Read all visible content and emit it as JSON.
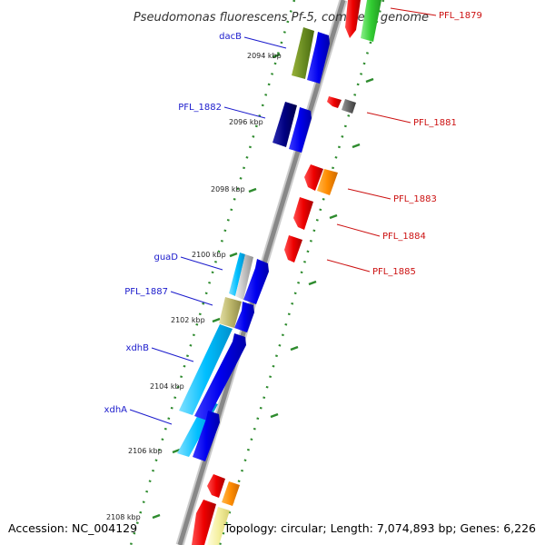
{
  "title": "Pseudomonas fluorescens Pf-5, complete genome",
  "footer": {
    "accession": "Accession: NC_004129",
    "summary": "Topology: circular; Length: 7,074,893 bp; Genes: 6,226"
  },
  "ticks": [
    "2094 kbp",
    "2096 kbp",
    "2098 kbp",
    "2100 kbp",
    "2102 kbp",
    "2104 kbp",
    "2106 kbp",
    "2108 kbp"
  ],
  "forward_gene_labels": [
    "dacB",
    "PFL_1882",
    "guaD",
    "PFL_1887",
    "xdhB",
    "xdhA"
  ],
  "reverse_gene_labels": [
    "PFL_1879",
    "PFL_1881",
    "PFL_1883",
    "PFL_1884",
    "PFL_1885"
  ],
  "colors": {
    "cds_forward": "#0000ee",
    "cds_reverse": "#ee0000",
    "backbone": "#888888",
    "tick_marks": "#2e8b2e",
    "label_forward": "#1a1acc",
    "label_reverse": "#cc1111"
  }
}
